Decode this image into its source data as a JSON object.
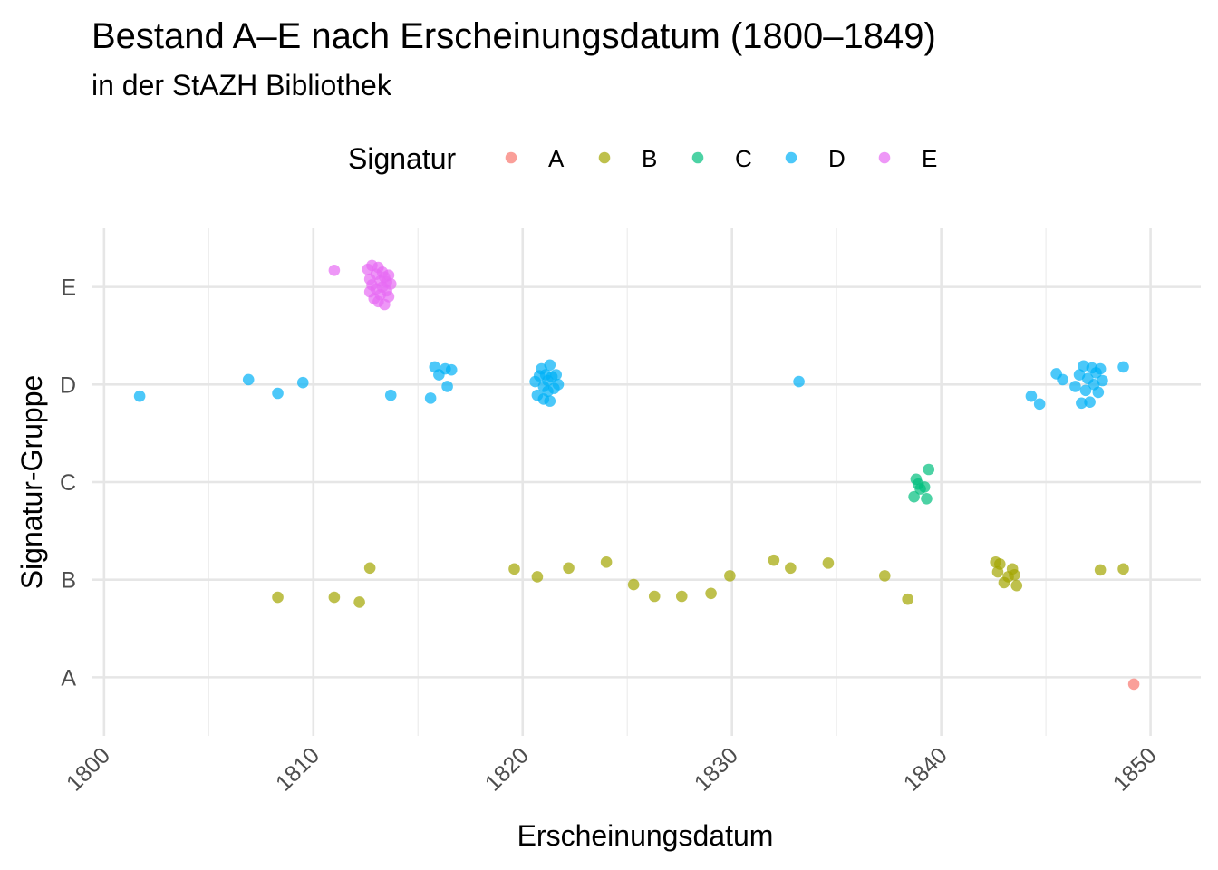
{
  "chart_data": {
    "type": "scatter",
    "title": "Bestand A–E nach Erscheinungsdatum (1800–1849)",
    "subtitle": "in der StAZH Bibliothek",
    "xlabel": "Erscheinungsdatum",
    "ylabel": "Signatur-Gruppe",
    "xlim": [
      1799.4,
      1852.4
    ],
    "ylim": [
      0.4,
      5.6
    ],
    "x_ticks": [
      1800,
      1810,
      1820,
      1830,
      1840,
      1850
    ],
    "x_ticks_minor": [
      1805,
      1815,
      1825,
      1835,
      1845
    ],
    "y_categories": [
      "A",
      "B",
      "C",
      "D",
      "E"
    ],
    "grid": true,
    "legend": {
      "title": "Signatur",
      "position": "top"
    },
    "series": [
      {
        "name": "A",
        "color": "#F8766D",
        "points": [
          [
            1849.2,
            0.93
          ]
        ]
      },
      {
        "name": "B",
        "color": "#A3A500",
        "points": [
          [
            1808.3,
            1.82
          ],
          [
            1811.0,
            1.82
          ],
          [
            1812.2,
            1.77
          ],
          [
            1812.7,
            2.12
          ],
          [
            1819.6,
            2.11
          ],
          [
            1820.7,
            2.03
          ],
          [
            1822.2,
            2.12
          ],
          [
            1824.0,
            2.18
          ],
          [
            1825.3,
            1.95
          ],
          [
            1826.3,
            1.83
          ],
          [
            1827.6,
            1.83
          ],
          [
            1829.0,
            1.86
          ],
          [
            1829.9,
            2.04
          ],
          [
            1832.0,
            2.2
          ],
          [
            1832.8,
            2.12
          ],
          [
            1834.6,
            2.17
          ],
          [
            1837.3,
            2.04
          ],
          [
            1838.4,
            1.8
          ],
          [
            1842.6,
            2.18
          ],
          [
            1842.8,
            2.16
          ],
          [
            1842.7,
            2.08
          ],
          [
            1843.0,
            1.97
          ],
          [
            1843.2,
            2.03
          ],
          [
            1843.4,
            2.11
          ],
          [
            1843.5,
            2.05
          ],
          [
            1843.6,
            1.94
          ],
          [
            1847.6,
            2.1
          ],
          [
            1848.7,
            2.11
          ]
        ]
      },
      {
        "name": "C",
        "color": "#00BF7D",
        "points": [
          [
            1838.7,
            2.85
          ],
          [
            1838.8,
            3.03
          ],
          [
            1838.9,
            2.98
          ],
          [
            1839.0,
            2.93
          ],
          [
            1839.2,
            2.95
          ],
          [
            1839.3,
            2.83
          ],
          [
            1839.4,
            3.13
          ]
        ]
      },
      {
        "name": "D",
        "color": "#00B0F6",
        "points": [
          [
            1801.7,
            3.88
          ],
          [
            1806.9,
            4.05
          ],
          [
            1808.3,
            3.91
          ],
          [
            1809.5,
            4.02
          ],
          [
            1813.7,
            3.89
          ],
          [
            1815.6,
            3.86
          ],
          [
            1815.8,
            4.18
          ],
          [
            1816.0,
            4.1
          ],
          [
            1816.3,
            4.16
          ],
          [
            1816.4,
            3.98
          ],
          [
            1816.6,
            4.15
          ],
          [
            1820.6,
            4.03
          ],
          [
            1820.7,
            3.89
          ],
          [
            1820.8,
            4.09
          ],
          [
            1820.9,
            4.16
          ],
          [
            1821.0,
            3.98
          ],
          [
            1821.0,
            3.85
          ],
          [
            1821.1,
            4.1
          ],
          [
            1821.2,
            4.04
          ],
          [
            1821.2,
            3.93
          ],
          [
            1821.3,
            4.2
          ],
          [
            1821.3,
            3.83
          ],
          [
            1821.4,
            4.08
          ],
          [
            1821.5,
            3.96
          ],
          [
            1821.6,
            4.1
          ],
          [
            1821.7,
            4.0
          ],
          [
            1833.2,
            4.03
          ],
          [
            1844.3,
            3.88
          ],
          [
            1844.7,
            3.8
          ],
          [
            1845.5,
            4.11
          ],
          [
            1845.8,
            4.05
          ],
          [
            1846.4,
            3.98
          ],
          [
            1846.6,
            4.1
          ],
          [
            1846.7,
            3.81
          ],
          [
            1846.8,
            4.19
          ],
          [
            1846.9,
            3.94
          ],
          [
            1847.0,
            4.06
          ],
          [
            1847.1,
            3.82
          ],
          [
            1847.2,
            4.17
          ],
          [
            1847.3,
            4.0
          ],
          [
            1847.4,
            4.12
          ],
          [
            1847.5,
            3.92
          ],
          [
            1847.6,
            4.16
          ],
          [
            1847.7,
            4.04
          ],
          [
            1848.7,
            4.18
          ]
        ]
      },
      {
        "name": "E",
        "color": "#E76BF3",
        "points": [
          [
            1811.0,
            5.17
          ],
          [
            1812.6,
            5.18
          ],
          [
            1812.7,
            5.08
          ],
          [
            1812.7,
            4.95
          ],
          [
            1812.8,
            5.22
          ],
          [
            1812.8,
            5.02
          ],
          [
            1812.9,
            4.88
          ],
          [
            1813.0,
            5.13
          ],
          [
            1813.0,
            4.98
          ],
          [
            1813.1,
            5.2
          ],
          [
            1813.1,
            4.85
          ],
          [
            1813.2,
            5.06
          ],
          [
            1813.2,
            4.92
          ],
          [
            1813.3,
            5.15
          ],
          [
            1813.3,
            5.0
          ],
          [
            1813.4,
            4.82
          ],
          [
            1813.4,
            5.1
          ],
          [
            1813.5,
            4.96
          ],
          [
            1813.5,
            5.05
          ],
          [
            1813.6,
            4.9
          ],
          [
            1813.6,
            5.12
          ],
          [
            1813.7,
            5.03
          ]
        ]
      }
    ]
  }
}
